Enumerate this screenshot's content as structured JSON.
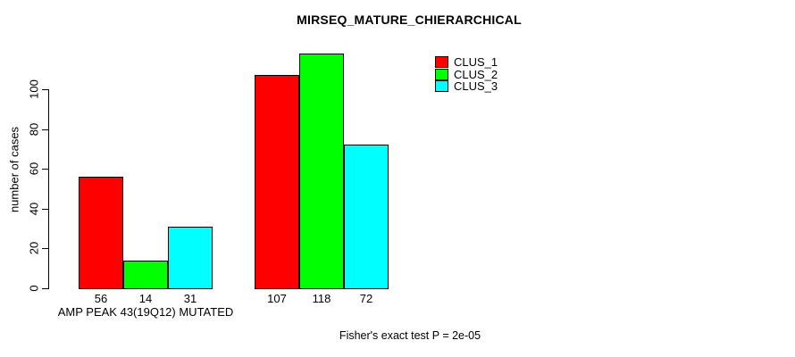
{
  "figure": {
    "background": "#ffffff"
  },
  "chart_data": {
    "type": "bar",
    "title": "MIRSEQ_MATURE_CHIERARCHICAL",
    "ylabel": "number of cases",
    "xlabel": "",
    "ylim": [
      0,
      118
    ],
    "yticks": [
      0,
      20,
      40,
      60,
      80,
      100
    ],
    "categories": [
      "AMP PEAK 43(19Q12) MUTATED",
      ""
    ],
    "series": [
      {
        "name": "CLUS_1",
        "color": "#ff0000"
      },
      {
        "name": "CLUS_2",
        "color": "#00ff00"
      },
      {
        "name": "CLUS_3",
        "color": "#00ffff"
      }
    ],
    "values": [
      [
        56,
        14,
        31
      ],
      [
        107,
        118,
        72
      ]
    ],
    "bar_border_color": "#000000",
    "grid": false,
    "legend_position": "top-right",
    "annotation": "Fisher's exact test P = 2e-05"
  }
}
